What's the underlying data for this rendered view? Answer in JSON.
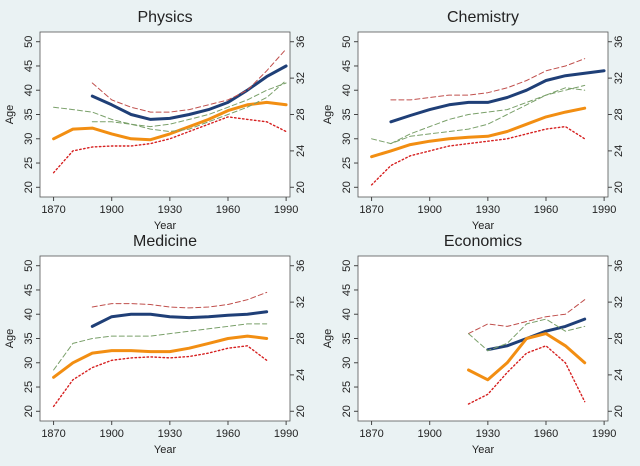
{
  "chart_data": [
    {
      "type": "line",
      "title": "Physics",
      "xlabel": "Year",
      "ylabel": "Age",
      "x": [
        1870,
        1880,
        1890,
        1900,
        1910,
        1920,
        1930,
        1940,
        1950,
        1960,
        1970,
        1980,
        1990
      ],
      "xlim": [
        1863,
        1992
      ],
      "xticks": [
        1870,
        1900,
        1930,
        1960,
        1990
      ],
      "ylim": [
        18,
        52
      ],
      "yticks": [
        20,
        25,
        30,
        35,
        40,
        45,
        50
      ],
      "y2lim": [
        18.93,
        37.07
      ],
      "y2ticks": [
        20,
        24,
        28,
        32,
        36
      ],
      "series": [
        {
          "color": "#1f3f77",
          "dash": "solid",
          "values": [
            null,
            null,
            38.8,
            37,
            35,
            34,
            34.2,
            35,
            36,
            37.5,
            40,
            42.8,
            45
          ]
        },
        {
          "color": "#f28e12",
          "dash": "solid",
          "values": [
            30,
            32,
            32.2,
            31,
            30,
            29.8,
            31,
            32.5,
            34,
            35.8,
            37,
            37.5,
            37
          ]
        },
        {
          "color": "#c0504d",
          "dash": "dashed",
          "values": [
            null,
            null,
            41.5,
            38,
            36.5,
            35.5,
            35.5,
            36,
            37,
            38,
            40,
            44,
            48.5
          ]
        },
        {
          "color": "#7aa06a",
          "dash": "dashed",
          "values": [
            36.5,
            36,
            35.5,
            34,
            33,
            32.5,
            33,
            34,
            35,
            36.5,
            38,
            40,
            41.5
          ]
        },
        {
          "color": "#7aa06a",
          "dash": "dashed",
          "values": [
            null,
            null,
            33.5,
            33.5,
            33,
            32,
            31.5,
            32,
            33.5,
            35,
            36.5,
            38.5,
            42
          ]
        },
        {
          "color": "#d62020",
          "dash": "dotted",
          "values": [
            23,
            27.5,
            28.3,
            28.5,
            28.5,
            29,
            30,
            31.5,
            33,
            34.5,
            34,
            33.5,
            31.5
          ]
        }
      ]
    },
    {
      "type": "line",
      "title": "Chemistry",
      "xlabel": "Year",
      "ylabel": "Age",
      "x": [
        1870,
        1880,
        1890,
        1900,
        1910,
        1920,
        1930,
        1940,
        1950,
        1960,
        1970,
        1980,
        1990
      ],
      "xlim": [
        1863,
        1992
      ],
      "xticks": [
        1870,
        1900,
        1930,
        1960,
        1990
      ],
      "ylim": [
        18,
        52
      ],
      "yticks": [
        20,
        25,
        30,
        35,
        40,
        45,
        50
      ],
      "y2lim": [
        18.93,
        37.07
      ],
      "y2ticks": [
        20,
        24,
        28,
        32,
        36
      ],
      "series": [
        {
          "color": "#1f3f77",
          "dash": "solid",
          "values": [
            null,
            33.5,
            34.8,
            36,
            37,
            37.5,
            37.5,
            38.5,
            40,
            42,
            43,
            43.5,
            44
          ]
        },
        {
          "color": "#f28e12",
          "dash": "solid",
          "values": [
            26.3,
            27.5,
            28.8,
            29.5,
            30,
            30.3,
            30.5,
            31.5,
            33,
            34.5,
            35.5,
            36.3,
            null
          ]
        },
        {
          "color": "#c0504d",
          "dash": "dashed",
          "values": [
            null,
            38,
            38,
            38.5,
            39,
            39,
            39.5,
            40.5,
            42,
            44,
            45,
            46.5,
            null
          ]
        },
        {
          "color": "#7aa06a",
          "dash": "dashed",
          "values": [
            30,
            29,
            30.5,
            31,
            31.5,
            32,
            33,
            35,
            37,
            39,
            40.5,
            40,
            null
          ]
        },
        {
          "color": "#7aa06a",
          "dash": "dashed",
          "values": [
            null,
            29,
            31,
            32.5,
            34,
            35,
            35.5,
            36,
            37.5,
            39,
            40,
            41,
            null
          ]
        },
        {
          "color": "#d62020",
          "dash": "dotted",
          "values": [
            20.5,
            24.5,
            26.5,
            27.5,
            28.5,
            29,
            29.5,
            30,
            31,
            32,
            32.5,
            30,
            null
          ]
        }
      ]
    },
    {
      "type": "line",
      "title": "Medicine",
      "xlabel": "Year",
      "ylabel": "Age",
      "x": [
        1870,
        1880,
        1890,
        1900,
        1910,
        1920,
        1930,
        1940,
        1950,
        1960,
        1970,
        1980,
        1990
      ],
      "xlim": [
        1863,
        1992
      ],
      "xticks": [
        1870,
        1900,
        1930,
        1960,
        1990
      ],
      "ylim": [
        18,
        52
      ],
      "yticks": [
        20,
        25,
        30,
        35,
        40,
        45,
        50
      ],
      "y2lim": [
        18.93,
        37.07
      ],
      "y2ticks": [
        20,
        24,
        28,
        32,
        36
      ],
      "series": [
        {
          "color": "#1f3f77",
          "dash": "solid",
          "values": [
            null,
            null,
            37.5,
            39.5,
            40,
            40,
            39.5,
            39.3,
            39.5,
            39.8,
            40,
            40.5,
            null
          ]
        },
        {
          "color": "#f28e12",
          "dash": "solid",
          "values": [
            27,
            30,
            32,
            32.5,
            32.5,
            32.3,
            32.3,
            33,
            34,
            35,
            35.5,
            35,
            null
          ]
        },
        {
          "color": "#c0504d",
          "dash": "dashed",
          "values": [
            null,
            null,
            41.5,
            42.2,
            42.2,
            42,
            41.5,
            41.3,
            41.5,
            42,
            43,
            44.5,
            null
          ]
        },
        {
          "color": "#7aa06a",
          "dash": "dashed",
          "values": [
            28.5,
            34,
            35,
            35.5,
            35.5,
            35.5,
            36,
            36.5,
            37,
            37.5,
            38,
            38,
            null
          ]
        },
        {
          "color": "#d62020",
          "dash": "dotted",
          "values": [
            21,
            26.5,
            29,
            30.5,
            31,
            31.2,
            31,
            31.3,
            32,
            33,
            33.5,
            30.5,
            null
          ]
        }
      ]
    },
    {
      "type": "line",
      "title": "Economics",
      "xlabel": "Year",
      "ylabel": "Age",
      "x": [
        1870,
        1880,
        1890,
        1900,
        1910,
        1920,
        1930,
        1940,
        1950,
        1960,
        1970,
        1980,
        1990
      ],
      "xlim": [
        1863,
        1992
      ],
      "xticks": [
        1870,
        1900,
        1930,
        1960,
        1990
      ],
      "ylim": [
        18,
        52
      ],
      "yticks": [
        20,
        25,
        30,
        35,
        40,
        45,
        50
      ],
      "y2lim": [
        18.93,
        37.07
      ],
      "y2ticks": [
        20,
        24,
        28,
        32,
        36
      ],
      "series": [
        {
          "color": "#1f3f77",
          "dash": "solid",
          "values": [
            null,
            null,
            null,
            null,
            null,
            null,
            32.7,
            33.5,
            35,
            36.5,
            37.5,
            39,
            null
          ]
        },
        {
          "color": "#f28e12",
          "dash": "solid",
          "values": [
            null,
            null,
            null,
            null,
            null,
            28.5,
            26.5,
            30,
            35,
            36,
            33.5,
            30,
            null
          ]
        },
        {
          "color": "#c0504d",
          "dash": "dashed",
          "values": [
            null,
            null,
            null,
            null,
            null,
            36,
            38,
            37.5,
            38.5,
            39.5,
            40,
            43,
            null
          ]
        },
        {
          "color": "#7aa06a",
          "dash": "dashed",
          "values": [
            null,
            null,
            null,
            null,
            null,
            36,
            32.5,
            34,
            38,
            39,
            36.5,
            37.5,
            null
          ]
        },
        {
          "color": "#d62020",
          "dash": "dotted",
          "values": [
            null,
            null,
            null,
            null,
            null,
            21.5,
            23.5,
            28,
            32,
            33.5,
            30,
            22,
            null
          ]
        }
      ]
    }
  ]
}
